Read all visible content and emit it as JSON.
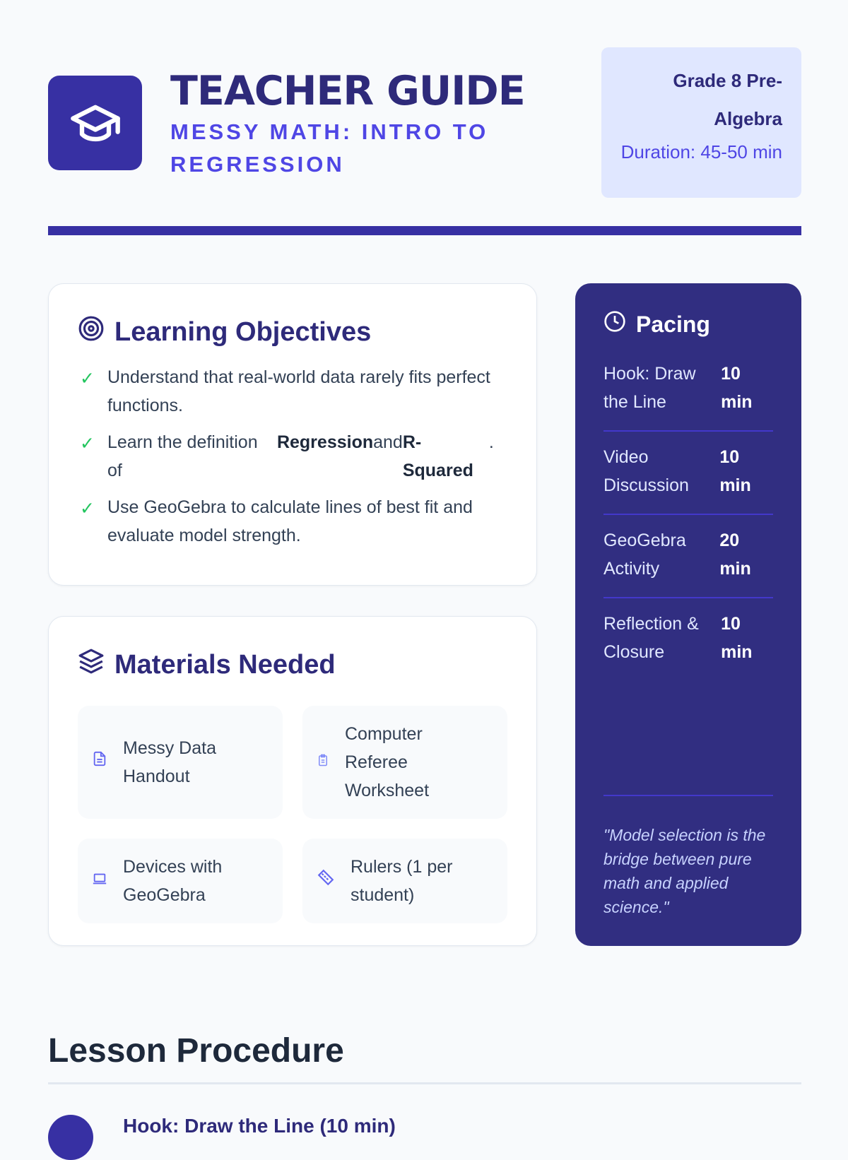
{
  "header": {
    "title": "TEACHER GUIDE",
    "subtitle": "MESSY MATH: INTRO TO REGRESSION",
    "grade": "Grade 8 Pre-Algebra",
    "duration": "Duration: 45-50 min",
    "icon": "graduation-cap-icon"
  },
  "objectives": {
    "title": "Learning Objectives",
    "icon": "target-icon",
    "items": [
      "Understand that real-world data rarely fits perfect functions.",
      "Use GeoGebra to calculate lines of best fit and evaluate model strength."
    ],
    "item2": {
      "prefix": "Learn the definition of",
      "term1": "Regression",
      "and": "and",
      "term2": "R-Squared",
      "end": "."
    }
  },
  "materials": {
    "title": "Materials Needed",
    "icon": "layers-icon",
    "items": [
      {
        "label": "Messy Data Handout",
        "icon": "file-text-icon"
      },
      {
        "label": "Computer Referee Worksheet",
        "icon": "clipboard-icon"
      },
      {
        "label": "Devices with GeoGebra",
        "icon": "laptop-icon"
      },
      {
        "label": "Rulers (1 per student)",
        "icon": "ruler-icon"
      }
    ]
  },
  "pacing": {
    "title": "Pacing",
    "icon": "clock-icon",
    "rows": [
      {
        "name": "Hook: Draw the Line",
        "time": "10 min"
      },
      {
        "name": "Video Discussion",
        "time": "10 min"
      },
      {
        "name": "GeoGebra Activity",
        "time": "20 min"
      },
      {
        "name": "Reflection & Closure",
        "time": "10 min"
      }
    ],
    "quote": "\"Model selection is the bridge between pure math and applied science.\""
  },
  "procedure": {
    "title": "Lesson Procedure",
    "first_step": "Hook: Draw the Line (10 min)"
  },
  "colors": {
    "primary": "#3730a3",
    "accent": "#4f46e5",
    "check": "#22c55e",
    "background": "#f8fafc"
  }
}
